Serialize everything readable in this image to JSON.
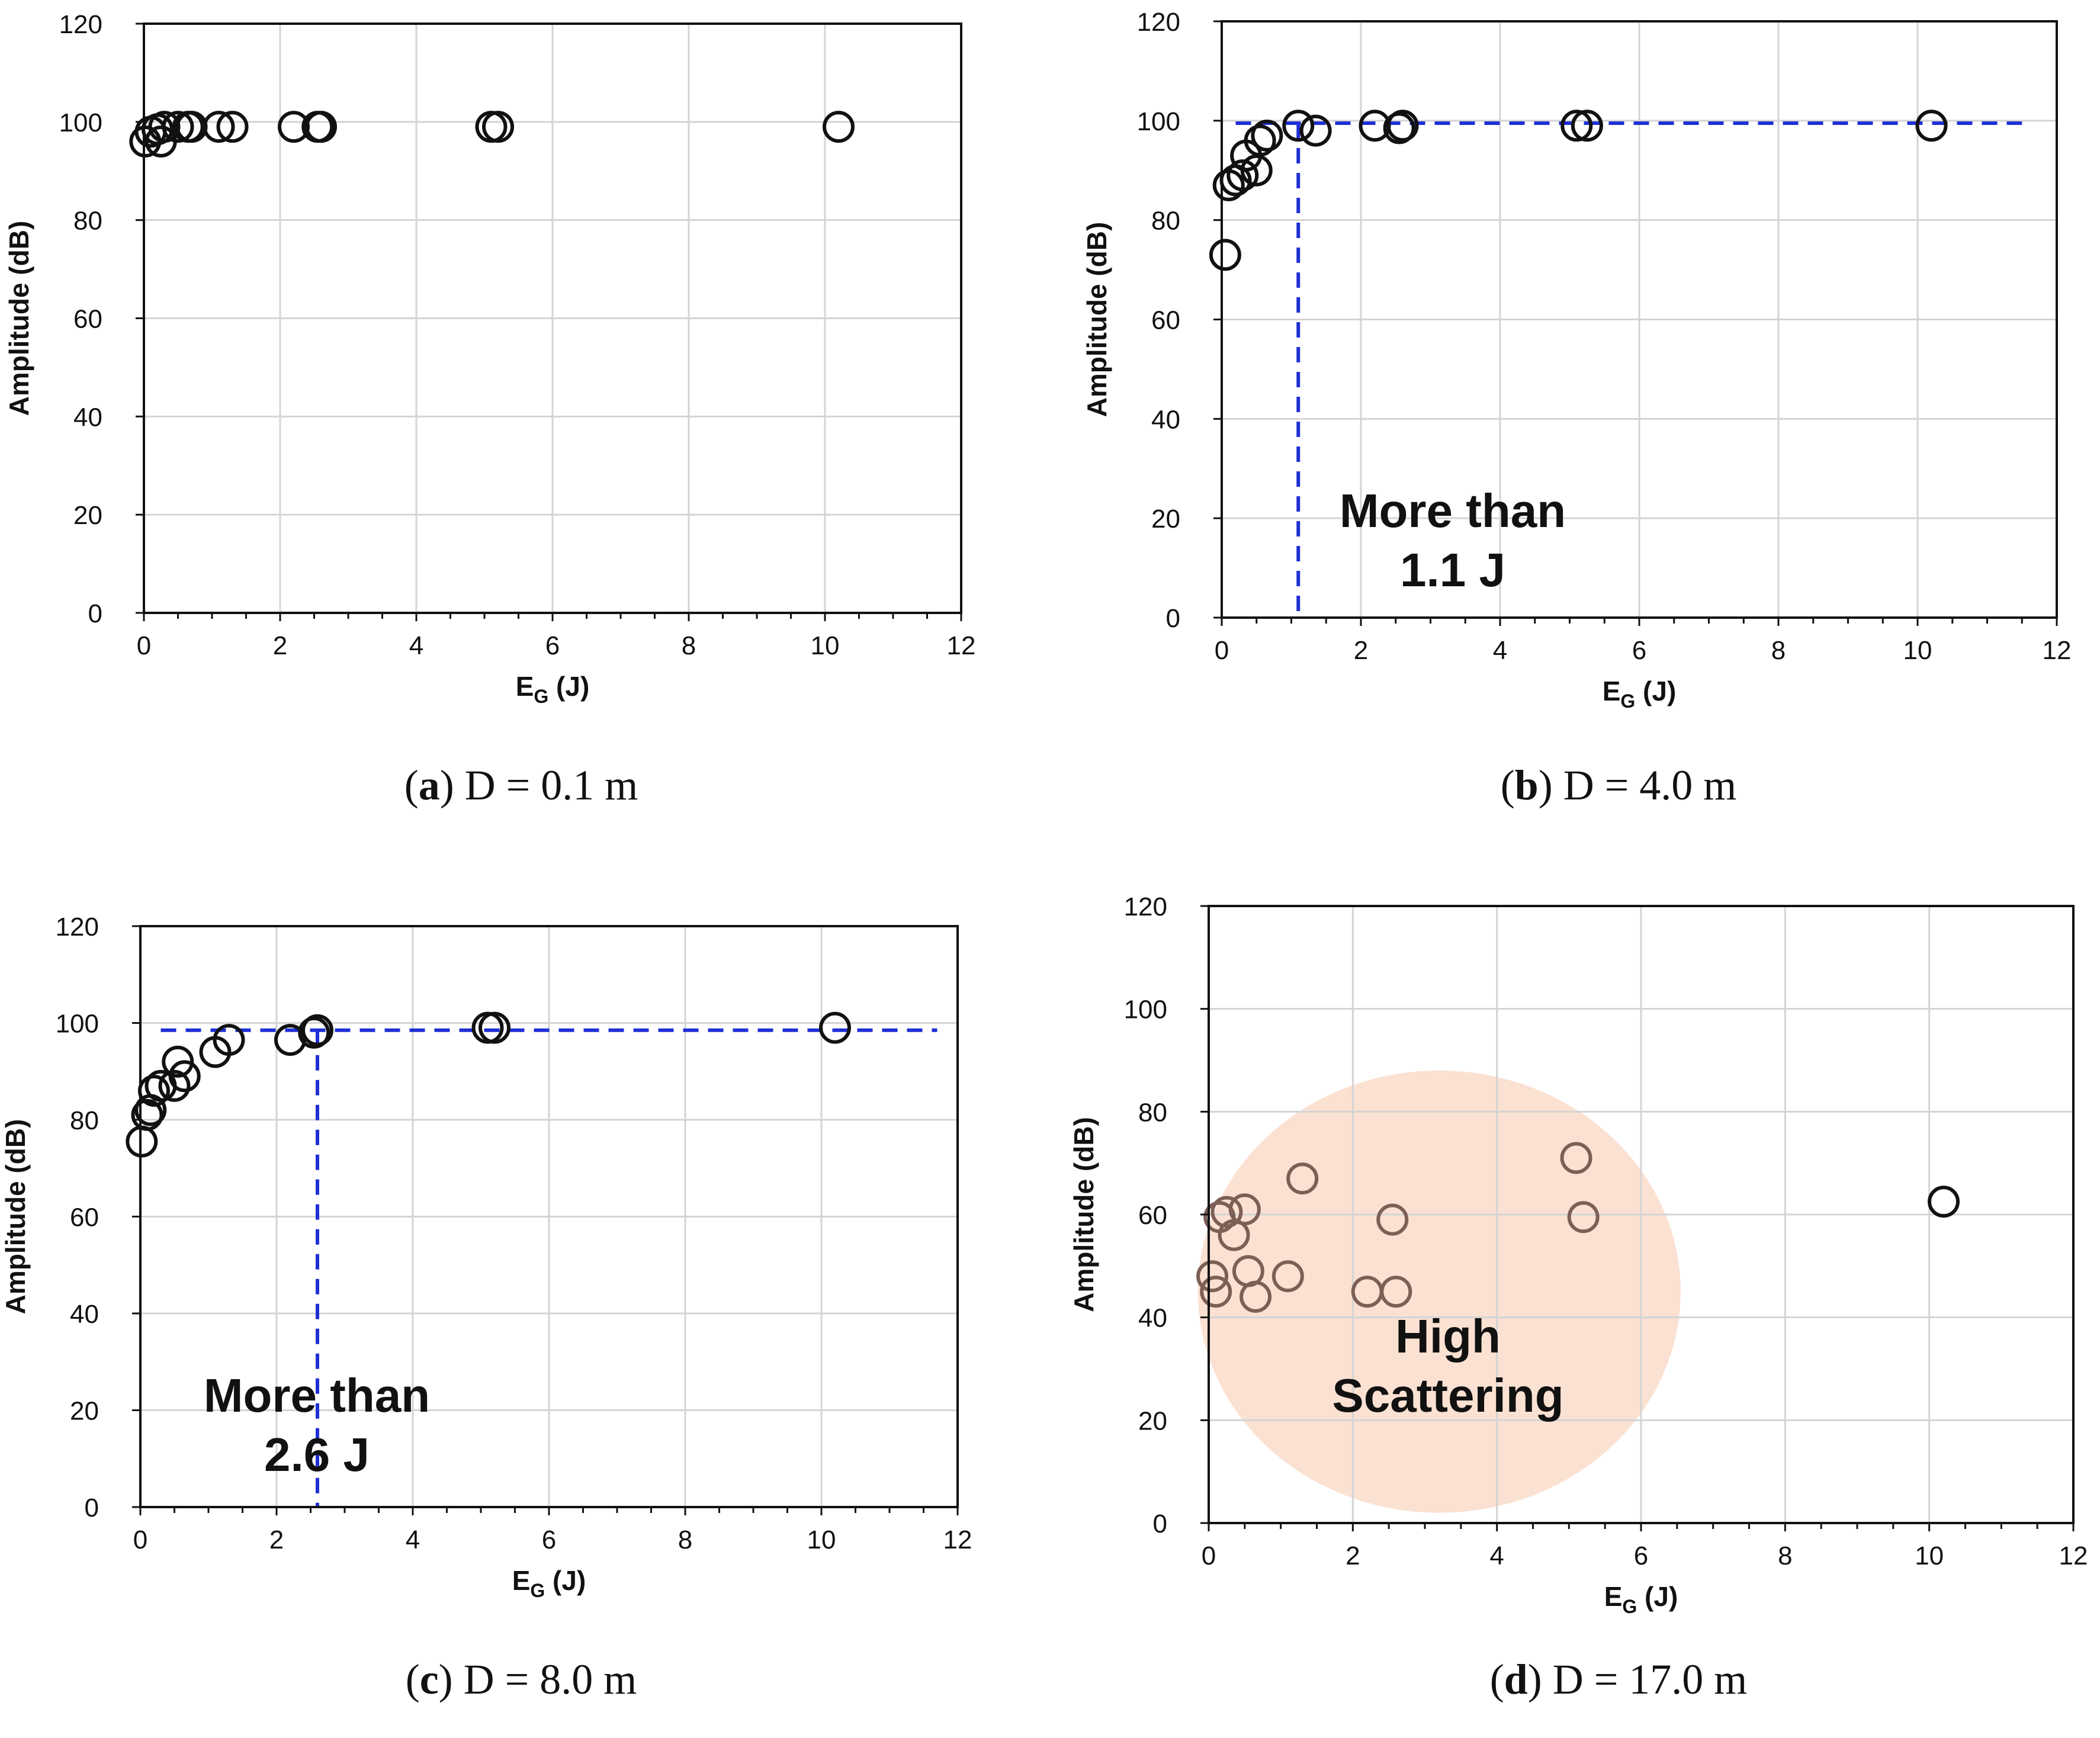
{
  "chart_data": [
    {
      "type": "scatter",
      "panel": "a",
      "caption_letter": "a",
      "caption_text": "D = 0.1 m",
      "xlabel_main": "E",
      "xlabel_sub": "G",
      "xlabel_unit": "(J)",
      "ylabel": "Amplitude (dB)",
      "xlim": [
        0,
        12
      ],
      "ylim": [
        0,
        120
      ],
      "xticks": [
        0,
        2,
        4,
        6,
        8,
        10,
        12
      ],
      "yticks": [
        0,
        20,
        40,
        60,
        80,
        100,
        120
      ],
      "grid": true,
      "points": [
        {
          "x": 0.02,
          "y": 96
        },
        {
          "x": 0.1,
          "y": 98
        },
        {
          "x": 0.2,
          "y": 98.5
        },
        {
          "x": 0.25,
          "y": 96
        },
        {
          "x": 0.3,
          "y": 99
        },
        {
          "x": 0.5,
          "y": 99
        },
        {
          "x": 0.65,
          "y": 99
        },
        {
          "x": 0.7,
          "y": 99
        },
        {
          "x": 1.1,
          "y": 99
        },
        {
          "x": 1.3,
          "y": 99
        },
        {
          "x": 2.2,
          "y": 99
        },
        {
          "x": 2.55,
          "y": 99
        },
        {
          "x": 2.6,
          "y": 99
        },
        {
          "x": 5.1,
          "y": 99
        },
        {
          "x": 5.2,
          "y": 99
        },
        {
          "x": 10.2,
          "y": 99
        }
      ]
    },
    {
      "type": "scatter",
      "panel": "b",
      "caption_letter": "b",
      "caption_text": "D = 4.0 m",
      "xlabel_main": "E",
      "xlabel_sub": "G",
      "xlabel_unit": "(J)",
      "ylabel": "Amplitude (dB)",
      "xlim": [
        0,
        12
      ],
      "ylim": [
        0,
        120
      ],
      "xticks": [
        0,
        2,
        4,
        6,
        8,
        10,
        12
      ],
      "yticks": [
        0,
        20,
        40,
        60,
        80,
        100,
        120
      ],
      "grid": true,
      "points": [
        {
          "x": 0.05,
          "y": 73
        },
        {
          "x": 0.1,
          "y": 87
        },
        {
          "x": 0.2,
          "y": 88
        },
        {
          "x": 0.3,
          "y": 89
        },
        {
          "x": 0.35,
          "y": 93
        },
        {
          "x": 0.5,
          "y": 90
        },
        {
          "x": 0.55,
          "y": 96
        },
        {
          "x": 0.65,
          "y": 97
        },
        {
          "x": 1.1,
          "y": 99
        },
        {
          "x": 1.35,
          "y": 98
        },
        {
          "x": 2.2,
          "y": 99
        },
        {
          "x": 2.55,
          "y": 98.5
        },
        {
          "x": 2.6,
          "y": 99
        },
        {
          "x": 5.1,
          "y": 99
        },
        {
          "x": 5.25,
          "y": 99
        },
        {
          "x": 10.2,
          "y": 99
        }
      ],
      "guide": {
        "threshold_x": 1.1,
        "level_y": 99.5,
        "x_start": 0.2,
        "x_end": 11.5
      },
      "annotation": [
        "More than",
        "1.1 J"
      ]
    },
    {
      "type": "scatter",
      "panel": "c",
      "caption_letter": "c",
      "caption_text": "D = 8.0 m",
      "xlabel_main": "E",
      "xlabel_sub": "G",
      "xlabel_unit": "(J)",
      "ylabel": "Amplitude (dB)",
      "xlim": [
        0,
        12
      ],
      "ylim": [
        0,
        120
      ],
      "xticks": [
        0,
        2,
        4,
        6,
        8,
        10,
        12
      ],
      "yticks": [
        0,
        20,
        40,
        60,
        80,
        100,
        120
      ],
      "grid": true,
      "points": [
        {
          "x": 0.02,
          "y": 75.5
        },
        {
          "x": 0.1,
          "y": 81
        },
        {
          "x": 0.15,
          "y": 82
        },
        {
          "x": 0.2,
          "y": 86
        },
        {
          "x": 0.3,
          "y": 87
        },
        {
          "x": 0.5,
          "y": 87
        },
        {
          "x": 0.55,
          "y": 92
        },
        {
          "x": 0.65,
          "y": 89
        },
        {
          "x": 1.1,
          "y": 94
        },
        {
          "x": 1.3,
          "y": 96.5
        },
        {
          "x": 2.2,
          "y": 96.5
        },
        {
          "x": 2.55,
          "y": 98
        },
        {
          "x": 2.6,
          "y": 98.5
        },
        {
          "x": 5.1,
          "y": 99
        },
        {
          "x": 5.2,
          "y": 99
        },
        {
          "x": 10.2,
          "y": 99
        }
      ],
      "guide": {
        "threshold_x": 2.6,
        "level_y": 98.5,
        "x_start": 0.3,
        "x_end": 11.7
      },
      "annotation": [
        "More than",
        "2.6 J"
      ]
    },
    {
      "type": "scatter",
      "panel": "d",
      "caption_letter": "d",
      "caption_text": "D = 17.0 m",
      "xlabel_main": "E",
      "xlabel_sub": "G",
      "xlabel_unit": "(J)",
      "ylabel": "Amplitude (dB)",
      "xlim": [
        0,
        12
      ],
      "ylim": [
        0,
        120
      ],
      "xticks": [
        0,
        2,
        4,
        6,
        8,
        10,
        12
      ],
      "yticks": [
        0,
        20,
        40,
        60,
        80,
        100,
        120
      ],
      "grid": true,
      "points": [
        {
          "x": 0.05,
          "y": 48
        },
        {
          "x": 0.1,
          "y": 45
        },
        {
          "x": 0.15,
          "y": 59.5
        },
        {
          "x": 0.25,
          "y": 60.5
        },
        {
          "x": 0.35,
          "y": 56
        },
        {
          "x": 0.5,
          "y": 61
        },
        {
          "x": 0.55,
          "y": 49
        },
        {
          "x": 0.65,
          "y": 44
        },
        {
          "x": 1.1,
          "y": 48
        },
        {
          "x": 1.3,
          "y": 67
        },
        {
          "x": 2.2,
          "y": 45
        },
        {
          "x": 2.55,
          "y": 59
        },
        {
          "x": 2.6,
          "y": 45
        },
        {
          "x": 5.1,
          "y": 71
        },
        {
          "x": 5.2,
          "y": 59.5
        },
        {
          "x": 10.2,
          "y": 62.5
        }
      ],
      "highlight": {
        "center_x": 3.2,
        "center_y": 45,
        "radius_x": 3.35,
        "radius_y": 43,
        "color": "#fbe1d2"
      },
      "annotation": [
        "High",
        "Scattering"
      ]
    }
  ],
  "colors": {
    "marker": "#111111",
    "marker_muted": "#7d5f56",
    "guide": "#1f2fd6",
    "grid": "#d4d4d4",
    "axis": "#111111"
  }
}
